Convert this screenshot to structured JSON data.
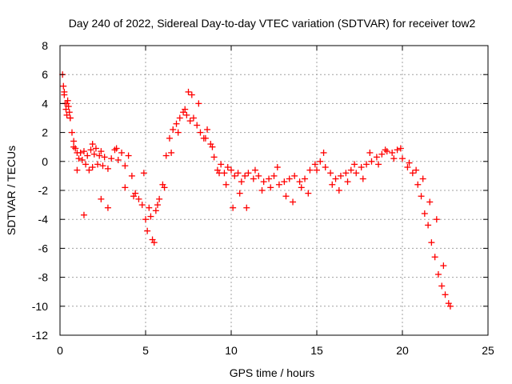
{
  "chart_data": {
    "type": "scatter",
    "title": "Day 240 of 2022, Sidereal Day-to-day VTEC variation (SDTVAR) for receiver tow2",
    "xlabel": "GPS time / hours",
    "ylabel": "SDTVAR / TECUs",
    "xlim": [
      0,
      25
    ],
    "ylim": [
      -12,
      8
    ],
    "xticks": [
      "0",
      "5",
      "10",
      "15",
      "20",
      "25"
    ],
    "yticks": [
      "-12",
      "-10",
      "-8",
      "-6",
      "-4",
      "-2",
      "0",
      "2",
      "4",
      "6",
      "8"
    ],
    "grid": true,
    "marker": "plus",
    "series": [
      {
        "name": "SDTVAR",
        "color": "#ff0000",
        "x": [
          0.15,
          0.2,
          0.25,
          0.3,
          0.35,
          0.4,
          0.45,
          0.5,
          0.55,
          0.6,
          0.7,
          0.8,
          0.9,
          1.0,
          1.1,
          1.2,
          1.3,
          1.4,
          1.5,
          1.6,
          1.7,
          1.8,
          1.9,
          2.0,
          2.1,
          2.2,
          2.3,
          2.4,
          2.5,
          2.6,
          2.8,
          3.0,
          3.2,
          3.4,
          3.6,
          3.8,
          4.0,
          4.2,
          4.4,
          4.6,
          4.8,
          5.0,
          5.2,
          5.4,
          5.6,
          5.8,
          6.0,
          6.2,
          6.4,
          6.6,
          6.8,
          7.0,
          7.2,
          7.4,
          7.6,
          7.8,
          8.0,
          8.2,
          8.4,
          8.6,
          8.8,
          9.0,
          9.2,
          9.4,
          9.6,
          9.8,
          10.0,
          10.2,
          10.4,
          10.6,
          10.8,
          11.0,
          11.3,
          11.6,
          11.9,
          12.2,
          12.5,
          12.8,
          13.1,
          13.4,
          13.7,
          14.0,
          14.3,
          14.6,
          14.9,
          15.2,
          15.5,
          15.8,
          16.1,
          16.4,
          16.7,
          17.0,
          17.3,
          17.6,
          17.9,
          18.2,
          18.5,
          18.8,
          19.1,
          19.4,
          19.7,
          20.0,
          20.3,
          20.6,
          20.9,
          21.1,
          21.3,
          21.5,
          21.7,
          21.9,
          22.1,
          22.3,
          22.5,
          22.7,
          22.8,
          0.25,
          0.4,
          0.6,
          0.8,
          1.0,
          1.4,
          1.9,
          2.4,
          2.8,
          3.3,
          3.8,
          4.3,
          4.9,
          5.1,
          5.3,
          5.5,
          5.7,
          6.1,
          6.5,
          6.9,
          7.3,
          7.5,
          7.7,
          8.1,
          8.5,
          8.9,
          9.3,
          9.7,
          10.1,
          10.5,
          10.9,
          11.4,
          11.8,
          12.3,
          12.7,
          13.2,
          13.6,
          14.1,
          14.5,
          15.0,
          15.4,
          15.9,
          16.3,
          16.8,
          17.2,
          17.7,
          18.1,
          18.6,
          19.0,
          19.5,
          19.9,
          20.4,
          20.8,
          21.2,
          21.6,
          22.0,
          22.4
        ],
        "y": [
          6.0,
          5.2,
          4.6,
          4.0,
          3.6,
          3.2,
          4.2,
          3.8,
          3.4,
          3.0,
          2.0,
          1.4,
          0.9,
          0.6,
          0.2,
          0.6,
          0.1,
          0.7,
          -0.2,
          0.4,
          -0.6,
          0.8,
          -0.4,
          0.5,
          0.9,
          -0.2,
          0.4,
          0.7,
          -0.3,
          0.3,
          -0.5,
          0.2,
          0.8,
          0.1,
          0.6,
          -0.3,
          0.4,
          -1.0,
          -2.2,
          -2.6,
          -3.0,
          -4.0,
          -3.2,
          -5.4,
          -3.4,
          -2.6,
          -1.6,
          0.4,
          1.6,
          2.2,
          2.6,
          3.0,
          3.4,
          3.2,
          2.8,
          3.0,
          2.5,
          2.0,
          1.6,
          2.2,
          1.2,
          0.3,
          -0.6,
          -0.2,
          -0.8,
          -0.4,
          -0.6,
          -1.0,
          -0.8,
          -1.4,
          -1.0,
          -0.8,
          -1.2,
          -1.0,
          -1.4,
          -1.2,
          -1.0,
          -1.6,
          -1.4,
          -1.2,
          -1.0,
          -1.4,
          -1.2,
          -0.6,
          -0.2,
          0.0,
          -0.4,
          -0.8,
          -1.2,
          -1.0,
          -0.8,
          -0.6,
          -0.8,
          -0.4,
          -0.2,
          0.0,
          0.3,
          0.5,
          0.7,
          0.6,
          0.8,
          0.2,
          -0.4,
          -0.8,
          -1.6,
          -2.4,
          -3.6,
          -4.4,
          -5.6,
          -6.6,
          -7.8,
          -8.6,
          -9.2,
          -9.8,
          -10.0,
          4.8,
          4.0,
          3.0,
          1.0,
          -0.6,
          -3.7,
          1.2,
          -2.6,
          -3.2,
          0.9,
          -1.8,
          -2.4,
          -0.8,
          -4.8,
          -3.8,
          -5.6,
          -3.0,
          -1.8,
          0.6,
          2.0,
          3.6,
          4.8,
          4.6,
          4.0,
          1.6,
          1.0,
          -0.8,
          -1.6,
          -3.2,
          -2.2,
          -3.2,
          -0.6,
          -2.0,
          -1.8,
          -0.4,
          -2.4,
          -2.8,
          -1.8,
          -2.2,
          -0.6,
          0.6,
          -1.6,
          -2.0,
          -1.4,
          -0.2,
          -1.2,
          0.6,
          -0.2,
          0.8,
          0.2,
          0.9,
          -0.1,
          -0.6,
          -1.2,
          -2.8,
          -4.0,
          -7.2
        ]
      }
    ]
  }
}
